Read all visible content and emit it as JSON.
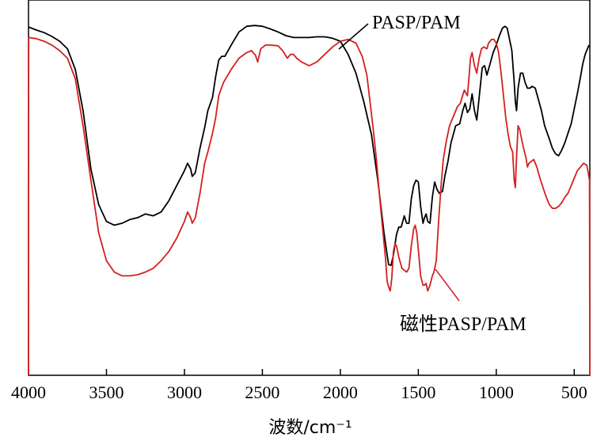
{
  "chart_data": {
    "type": "line",
    "xlabel": "波数/cm⁻¹",
    "ylabel": "",
    "xlim": [
      4000,
      400
    ],
    "x_reversed": true,
    "xticks": [
      4000,
      3500,
      3000,
      2500,
      2000,
      1500,
      1000,
      500
    ],
    "xtick_labels": [
      "4000",
      "3500",
      "3000",
      "2500",
      "2000",
      "1500",
      "1000",
      "500"
    ],
    "ylim": [
      0,
      100
    ],
    "y_ticks_shown": false,
    "grid": false,
    "legend": "none",
    "series": [
      {
        "name": "PASP/PAM",
        "color": "#000000",
        "points": [
          [
            4000,
            92.8
          ],
          [
            3950,
            92.0
          ],
          [
            3900,
            91.3
          ],
          [
            3850,
            90.3
          ],
          [
            3800,
            89.0
          ],
          [
            3750,
            87.0
          ],
          [
            3700,
            81.5
          ],
          [
            3650,
            70.5
          ],
          [
            3600,
            55.0
          ],
          [
            3550,
            45.5
          ],
          [
            3500,
            41.0
          ],
          [
            3450,
            40.0
          ],
          [
            3400,
            40.5
          ],
          [
            3350,
            41.5
          ],
          [
            3300,
            42.0
          ],
          [
            3250,
            43.0
          ],
          [
            3200,
            42.5
          ],
          [
            3150,
            43.5
          ],
          [
            3100,
            46.5
          ],
          [
            3050,
            50.5
          ],
          [
            3000,
            54.5
          ],
          [
            2980,
            56.5
          ],
          [
            2960,
            55.0
          ],
          [
            2950,
            53.0
          ],
          [
            2930,
            54.0
          ],
          [
            2900,
            60.5
          ],
          [
            2870,
            66.0
          ],
          [
            2850,
            70.5
          ],
          [
            2820,
            74.0
          ],
          [
            2800,
            79.5
          ],
          [
            2780,
            84.0
          ],
          [
            2760,
            85.0
          ],
          [
            2740,
            85.0
          ],
          [
            2700,
            88.0
          ],
          [
            2650,
            91.5
          ],
          [
            2600,
            93.0
          ],
          [
            2550,
            93.2
          ],
          [
            2500,
            93.0
          ],
          [
            2450,
            92.3
          ],
          [
            2400,
            91.5
          ],
          [
            2350,
            90.5
          ],
          [
            2300,
            90.0
          ],
          [
            2250,
            90.0
          ],
          [
            2200,
            90.0
          ],
          [
            2150,
            90.2
          ],
          [
            2100,
            90.2
          ],
          [
            2050,
            89.8
          ],
          [
            2000,
            89.0
          ],
          [
            1950,
            85.5
          ],
          [
            1900,
            80.5
          ],
          [
            1850,
            73.0
          ],
          [
            1800,
            64.0
          ],
          [
            1780,
            58.0
          ],
          [
            1760,
            52.0
          ],
          [
            1740,
            45.0
          ],
          [
            1720,
            38.0
          ],
          [
            1700,
            32.0
          ],
          [
            1690,
            29.5
          ],
          [
            1675,
            29.3
          ],
          [
            1660,
            32.0
          ],
          [
            1640,
            37.5
          ],
          [
            1625,
            39.5
          ],
          [
            1610,
            39.5
          ],
          [
            1600,
            41.0
          ],
          [
            1590,
            42.5
          ],
          [
            1575,
            40.5
          ],
          [
            1560,
            40.5
          ],
          [
            1545,
            47.0
          ],
          [
            1530,
            50.5
          ],
          [
            1515,
            52.0
          ],
          [
            1500,
            51.5
          ],
          [
            1485,
            45.0
          ],
          [
            1470,
            40.5
          ],
          [
            1460,
            42.0
          ],
          [
            1450,
            43.0
          ],
          [
            1440,
            41.0
          ],
          [
            1425,
            40.5
          ],
          [
            1410,
            47.5
          ],
          [
            1395,
            51.5
          ],
          [
            1380,
            49.5
          ],
          [
            1365,
            48.5
          ],
          [
            1345,
            49.0
          ],
          [
            1330,
            53.0
          ],
          [
            1310,
            57.0
          ],
          [
            1290,
            62.0
          ],
          [
            1260,
            66.5
          ],
          [
            1235,
            67.0
          ],
          [
            1215,
            70.5
          ],
          [
            1200,
            72.5
          ],
          [
            1185,
            70.0
          ],
          [
            1170,
            71.0
          ],
          [
            1155,
            75.0
          ],
          [
            1140,
            70.5
          ],
          [
            1125,
            68.0
          ],
          [
            1110,
            74.0
          ],
          [
            1090,
            82.0
          ],
          [
            1075,
            82.5
          ],
          [
            1060,
            80.0
          ],
          [
            1040,
            83.0
          ],
          [
            1020,
            86.0
          ],
          [
            1000,
            88.0
          ],
          [
            980,
            90.5
          ],
          [
            960,
            92.5
          ],
          [
            945,
            93.0
          ],
          [
            930,
            92.5
          ],
          [
            915,
            89.5
          ],
          [
            900,
            86.5
          ],
          [
            885,
            78.0
          ],
          [
            878,
            73.0
          ],
          [
            870,
            70.5
          ],
          [
            860,
            76.5
          ],
          [
            845,
            80.5
          ],
          [
            830,
            80.5
          ],
          [
            815,
            78.0
          ],
          [
            800,
            76.5
          ],
          [
            785,
            76.5
          ],
          [
            770,
            77.0
          ],
          [
            750,
            76.5
          ],
          [
            730,
            73.5
          ],
          [
            710,
            70.5
          ],
          [
            690,
            66.5
          ],
          [
            660,
            63.0
          ],
          [
            640,
            60.5
          ],
          [
            620,
            59.0
          ],
          [
            600,
            58.5
          ],
          [
            580,
            60.0
          ],
          [
            560,
            62.0
          ],
          [
            540,
            64.5
          ],
          [
            520,
            67.0
          ],
          [
            500,
            71.0
          ],
          [
            480,
            75.0
          ],
          [
            460,
            79.5
          ],
          [
            445,
            83.0
          ],
          [
            430,
            85.5
          ],
          [
            415,
            87.0
          ],
          [
            405,
            88.0
          ]
        ]
      },
      {
        "name": "磁性PASP/PAM",
        "color": "#d42020",
        "points": [
          [
            4000,
            0.0
          ],
          [
            3999,
            90.0
          ],
          [
            3950,
            89.7
          ],
          [
            3900,
            89.0
          ],
          [
            3850,
            88.0
          ],
          [
            3800,
            86.5
          ],
          [
            3750,
            84.5
          ],
          [
            3700,
            79.0
          ],
          [
            3650,
            66.5
          ],
          [
            3600,
            52.0
          ],
          [
            3550,
            38.0
          ],
          [
            3500,
            30.5
          ],
          [
            3450,
            27.5
          ],
          [
            3400,
            26.5
          ],
          [
            3350,
            26.5
          ],
          [
            3300,
            26.8
          ],
          [
            3250,
            27.5
          ],
          [
            3200,
            28.5
          ],
          [
            3150,
            30.5
          ],
          [
            3100,
            33.0
          ],
          [
            3050,
            36.5
          ],
          [
            3000,
            41.0
          ],
          [
            2980,
            43.5
          ],
          [
            2960,
            42.0
          ],
          [
            2950,
            40.5
          ],
          [
            2930,
            42.0
          ],
          [
            2900,
            48.5
          ],
          [
            2870,
            56.5
          ],
          [
            2850,
            59.5
          ],
          [
            2820,
            64.5
          ],
          [
            2800,
            68.5
          ],
          [
            2780,
            74.5
          ],
          [
            2750,
            78.0
          ],
          [
            2700,
            81.5
          ],
          [
            2650,
            84.5
          ],
          [
            2600,
            86.0
          ],
          [
            2570,
            86.5
          ],
          [
            2545,
            85.3
          ],
          [
            2530,
            83.5
          ],
          [
            2510,
            87.0
          ],
          [
            2480,
            88.0
          ],
          [
            2450,
            88.0
          ],
          [
            2400,
            87.8
          ],
          [
            2370,
            86.5
          ],
          [
            2340,
            84.5
          ],
          [
            2320,
            85.5
          ],
          [
            2300,
            85.5
          ],
          [
            2280,
            84.5
          ],
          [
            2250,
            83.5
          ],
          [
            2200,
            82.5
          ],
          [
            2150,
            83.5
          ],
          [
            2100,
            85.5
          ],
          [
            2050,
            87.5
          ],
          [
            2000,
            89.0
          ],
          [
            1950,
            89.5
          ],
          [
            1900,
            88.5
          ],
          [
            1860,
            85.0
          ],
          [
            1830,
            80.0
          ],
          [
            1810,
            73.0
          ],
          [
            1790,
            66.0
          ],
          [
            1770,
            58.0
          ],
          [
            1750,
            48.5
          ],
          [
            1730,
            39.5
          ],
          [
            1710,
            31.0
          ],
          [
            1700,
            25.0
          ],
          [
            1690,
            23.5
          ],
          [
            1680,
            22.5
          ],
          [
            1670,
            26.0
          ],
          [
            1660,
            33.0
          ],
          [
            1650,
            35.0
          ],
          [
            1640,
            34.5
          ],
          [
            1625,
            31.5
          ],
          [
            1605,
            28.5
          ],
          [
            1590,
            28.0
          ],
          [
            1575,
            27.5
          ],
          [
            1560,
            28.5
          ],
          [
            1545,
            34.5
          ],
          [
            1530,
            39.0
          ],
          [
            1520,
            40.0
          ],
          [
            1510,
            38.0
          ],
          [
            1500,
            33.5
          ],
          [
            1485,
            26.5
          ],
          [
            1470,
            24.0
          ],
          [
            1460,
            24.0
          ],
          [
            1450,
            24.5
          ],
          [
            1440,
            22.5
          ],
          [
            1425,
            24.0
          ],
          [
            1410,
            26.5
          ],
          [
            1400,
            27.5
          ],
          [
            1385,
            30.5
          ],
          [
            1370,
            41.0
          ],
          [
            1355,
            50.0
          ],
          [
            1340,
            57.5
          ],
          [
            1320,
            62.5
          ],
          [
            1300,
            66.5
          ],
          [
            1275,
            69.0
          ],
          [
            1250,
            71.5
          ],
          [
            1230,
            72.5
          ],
          [
            1220,
            74.0
          ],
          [
            1205,
            76.0
          ],
          [
            1185,
            74.5
          ],
          [
            1175,
            79.5
          ],
          [
            1165,
            84.5
          ],
          [
            1155,
            86.0
          ],
          [
            1140,
            82.5
          ],
          [
            1125,
            80.5
          ],
          [
            1110,
            84.5
          ],
          [
            1095,
            87.0
          ],
          [
            1080,
            87.5
          ],
          [
            1060,
            87.0
          ],
          [
            1050,
            88.5
          ],
          [
            1040,
            89.0
          ],
          [
            1030,
            89.5
          ],
          [
            1015,
            89.5
          ],
          [
            1000,
            88.5
          ],
          [
            985,
            86.0
          ],
          [
            970,
            81.0
          ],
          [
            955,
            75.0
          ],
          [
            940,
            69.0
          ],
          [
            925,
            64.5
          ],
          [
            910,
            61.0
          ],
          [
            895,
            59.5
          ],
          [
            885,
            52.0
          ],
          [
            878,
            50.0
          ],
          [
            870,
            58.0
          ],
          [
            860,
            66.5
          ],
          [
            850,
            65.5
          ],
          [
            840,
            63.5
          ],
          [
            825,
            60.5
          ],
          [
            810,
            58.0
          ],
          [
            800,
            55.5
          ],
          [
            790,
            56.5
          ],
          [
            775,
            57.0
          ],
          [
            760,
            57.5
          ],
          [
            740,
            55.5
          ],
          [
            720,
            52.5
          ],
          [
            700,
            50.0
          ],
          [
            680,
            47.5
          ],
          [
            660,
            45.5
          ],
          [
            640,
            44.5
          ],
          [
            620,
            44.5
          ],
          [
            600,
            45.0
          ],
          [
            580,
            46.0
          ],
          [
            560,
            47.5
          ],
          [
            540,
            48.5
          ],
          [
            520,
            50.5
          ],
          [
            500,
            52.5
          ],
          [
            480,
            54.5
          ],
          [
            460,
            55.5
          ],
          [
            440,
            56.5
          ],
          [
            420,
            56.0
          ],
          [
            410,
            54.0
          ],
          [
            402,
            52.0
          ],
          [
            400,
            0.0
          ]
        ]
      }
    ],
    "annotations": [
      {
        "text": "PASP/PAM",
        "target_series": 0
      },
      {
        "text": "磁性PASP/PAM",
        "target_series": 1
      }
    ]
  }
}
